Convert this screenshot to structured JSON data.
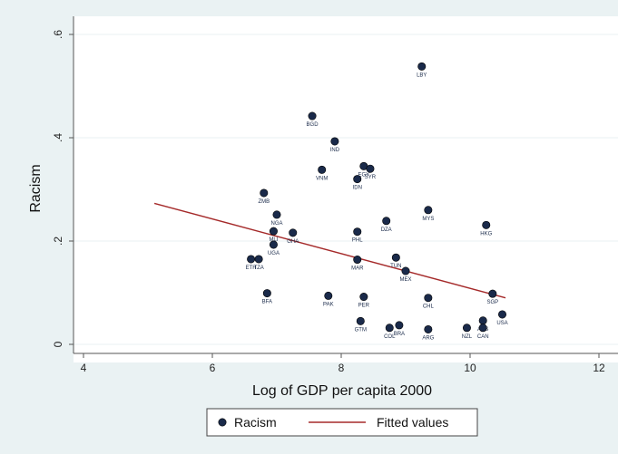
{
  "chart_data": {
    "type": "scatter",
    "xlabel": "Log of GDP per capita 2000",
    "ylabel": "Racism",
    "xlim": [
      4,
      12
    ],
    "ylim": [
      0,
      0.6
    ],
    "x_ticks": [
      4,
      6,
      8,
      10,
      12
    ],
    "x_tick_labels": [
      "4",
      "6",
      "8",
      "10",
      "12"
    ],
    "y_ticks": [
      0,
      0.2,
      0.4,
      0.6
    ],
    "y_tick_labels": [
      "0",
      ".2",
      ".4",
      ".6"
    ],
    "grid": "horizontal",
    "legend_position": "bottom",
    "colors": {
      "outer_background": "#eaf2f3",
      "plot_background": "#ffffff",
      "grid": "#eaf2f3",
      "points": "#1a2a4a",
      "fit_line": "#a52a2a"
    },
    "series": [
      {
        "name": "Racism",
        "kind": "scatter",
        "points": [
          {
            "label": "LBY",
            "x": 9.25,
            "y": 0.538
          },
          {
            "label": "BGD",
            "x": 7.55,
            "y": 0.442
          },
          {
            "label": "IND",
            "x": 7.9,
            "y": 0.393
          },
          {
            "label": "VNM",
            "x": 7.7,
            "y": 0.338
          },
          {
            "label": "IDN",
            "x": 8.25,
            "y": 0.32
          },
          {
            "label": "EGY",
            "x": 8.35,
            "y": 0.345
          },
          {
            "label": "SYR",
            "x": 8.45,
            "y": 0.34
          },
          {
            "label": "MYS",
            "x": 9.35,
            "y": 0.26
          },
          {
            "label": "DZA",
            "x": 8.7,
            "y": 0.239
          },
          {
            "label": "HKG",
            "x": 10.25,
            "y": 0.231
          },
          {
            "label": "ZMB",
            "x": 6.8,
            "y": 0.293
          },
          {
            "label": "NGA",
            "x": 7.0,
            "y": 0.251
          },
          {
            "label": "MLI",
            "x": 6.95,
            "y": 0.219
          },
          {
            "label": "GHA",
            "x": 7.25,
            "y": 0.216
          },
          {
            "label": "PHL",
            "x": 8.25,
            "y": 0.218
          },
          {
            "label": "UGA",
            "x": 6.95,
            "y": 0.193
          },
          {
            "label": "ETH",
            "x": 6.6,
            "y": 0.165
          },
          {
            "label": "TZA",
            "x": 6.72,
            "y": 0.165
          },
          {
            "label": "MAR",
            "x": 8.25,
            "y": 0.164
          },
          {
            "label": "TUN",
            "x": 8.85,
            "y": 0.168
          },
          {
            "label": "MEX",
            "x": 9.0,
            "y": 0.142
          },
          {
            "label": "BFA",
            "x": 6.85,
            "y": 0.099
          },
          {
            "label": "PAK",
            "x": 7.8,
            "y": 0.094
          },
          {
            "label": "PER",
            "x": 8.35,
            "y": 0.092
          },
          {
            "label": "CHL",
            "x": 9.35,
            "y": 0.09
          },
          {
            "label": "SGP",
            "x": 10.35,
            "y": 0.098
          },
          {
            "label": "GTM",
            "x": 8.3,
            "y": 0.045
          },
          {
            "label": "COL",
            "x": 8.75,
            "y": 0.032
          },
          {
            "label": "BRA",
            "x": 8.9,
            "y": 0.037
          },
          {
            "label": "ARG",
            "x": 9.35,
            "y": 0.029
          },
          {
            "label": "NZL",
            "x": 9.95,
            "y": 0.032
          },
          {
            "label": "AUS",
            "x": 10.2,
            "y": 0.046
          },
          {
            "label": "CAN",
            "x": 10.2,
            "y": 0.032
          },
          {
            "label": "USA",
            "x": 10.5,
            "y": 0.058
          }
        ]
      },
      {
        "name": "Fitted values",
        "kind": "line",
        "x": [
          5.1,
          10.55
        ],
        "y": [
          0.273,
          0.09
        ]
      }
    ]
  }
}
